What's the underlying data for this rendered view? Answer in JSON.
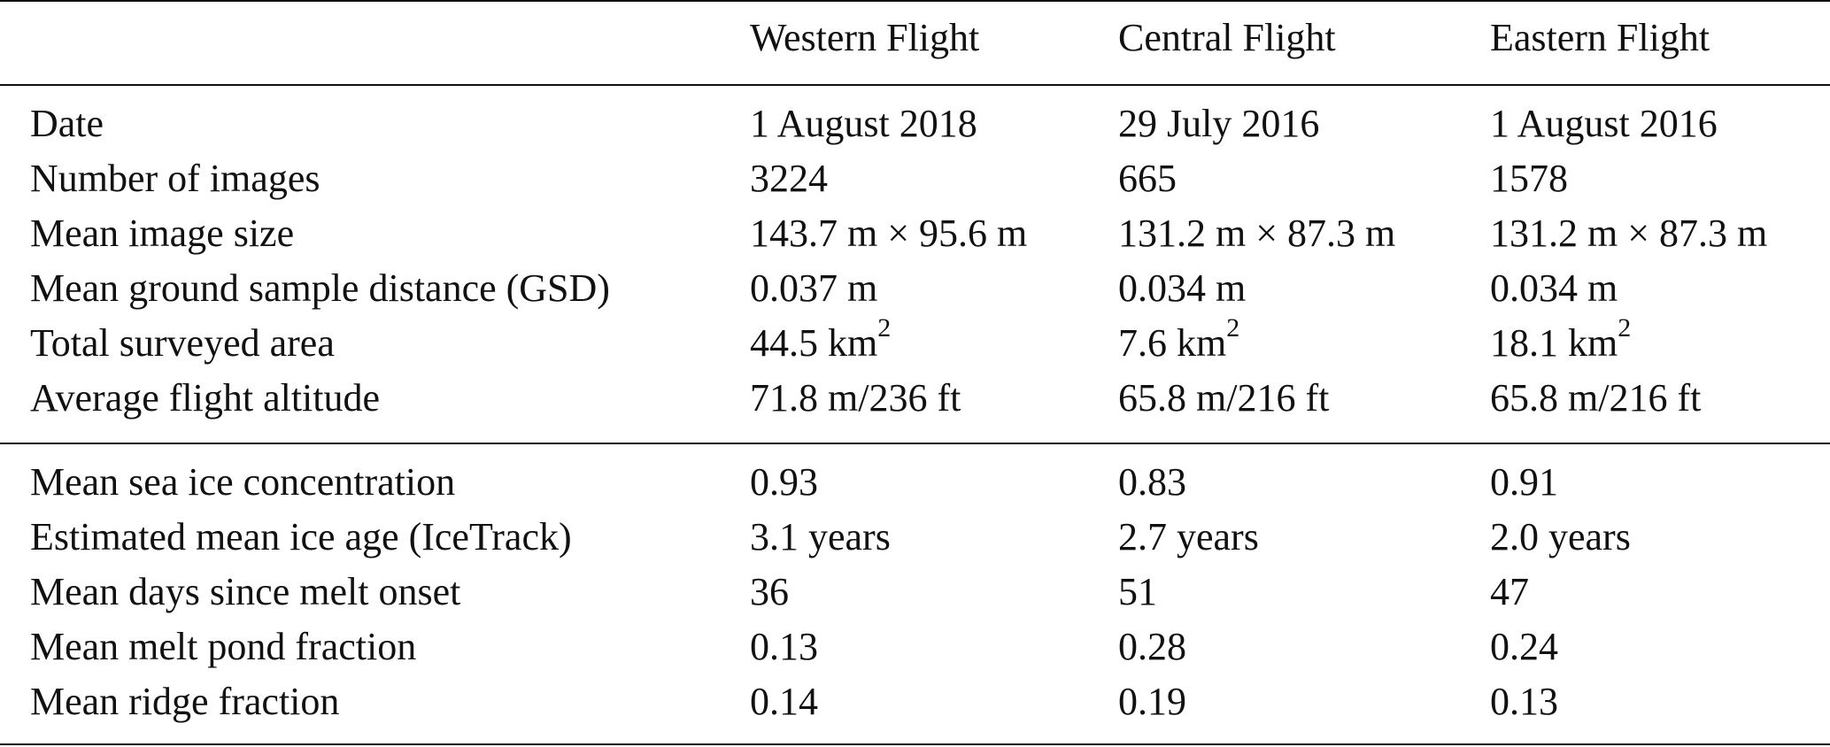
{
  "table": {
    "header": [
      "",
      "Western Flight",
      "Central Flight",
      "Eastern Flight"
    ],
    "section1": [
      {
        "label": "Date",
        "values": [
          "1 August 2018",
          "29 July 2016",
          "1 August 2016"
        ]
      },
      {
        "label": "Number of images",
        "values": [
          "3224",
          "665",
          "1578"
        ]
      },
      {
        "label": "Mean image size",
        "values": [
          "143.7 m × 95.6 m",
          "131.2 m × 87.3 m",
          "131.2 m × 87.3 m"
        ]
      },
      {
        "label": "Mean ground sample distance (GSD)",
        "values": [
          "0.037 m",
          "0.034 m",
          "0.034 m"
        ]
      },
      {
        "label": "Total surveyed area",
        "values": [
          "44.5 km",
          "7.6 km",
          "18.1 km"
        ],
        "value_superscript": "2"
      },
      {
        "label": "Average flight altitude",
        "values": [
          "71.8 m/236 ft",
          "65.8 m/216 ft",
          "65.8 m/216 ft"
        ]
      }
    ],
    "section2": [
      {
        "label": "Mean sea ice concentration",
        "values": [
          "0.93",
          "0.83",
          "0.91"
        ]
      },
      {
        "label": "Estimated mean ice age (IceTrack)",
        "values": [
          "3.1 years",
          "2.7 years",
          "2.0 years"
        ]
      },
      {
        "label": "Mean days since melt onset",
        "values": [
          "36",
          "51",
          "47"
        ]
      },
      {
        "label": "Mean melt pond fraction",
        "values": [
          "0.13",
          "0.28",
          "0.24"
        ]
      },
      {
        "label": "Mean ridge fraction",
        "values": [
          "0.14",
          "0.19",
          "0.13"
        ]
      }
    ]
  }
}
